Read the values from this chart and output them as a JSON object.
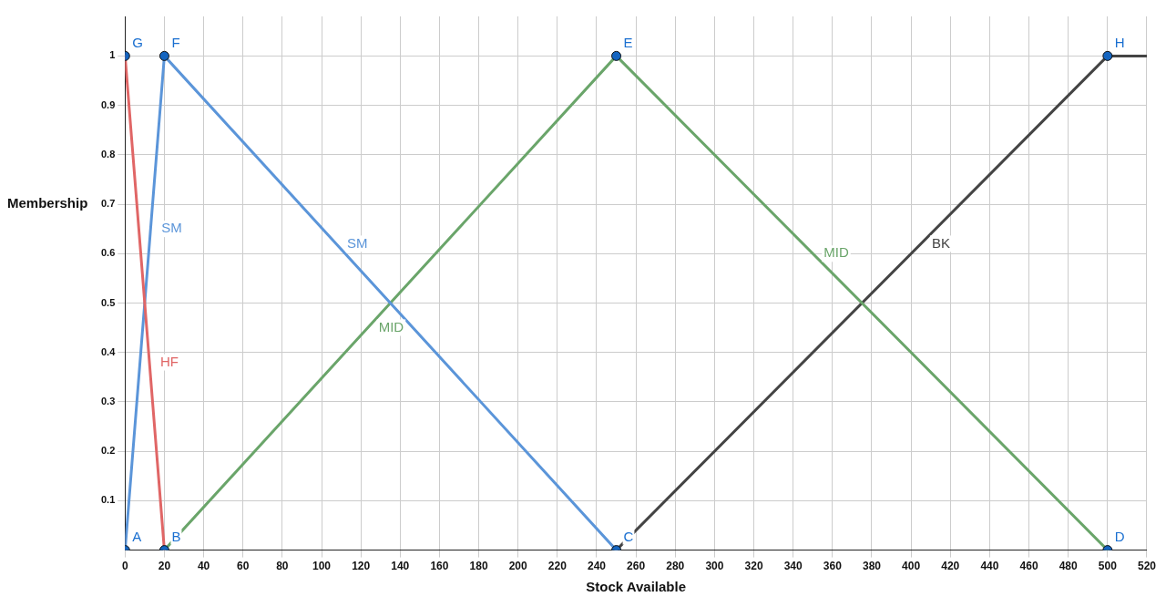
{
  "chart_data": {
    "type": "line",
    "xlabel": "Stock Available",
    "ylabel": "Membership",
    "xlim": [
      0,
      520
    ],
    "ylim": [
      0,
      1.08
    ],
    "xticks": [
      0,
      20,
      40,
      60,
      80,
      100,
      120,
      140,
      160,
      180,
      200,
      220,
      240,
      260,
      280,
      300,
      320,
      340,
      360,
      380,
      400,
      420,
      440,
      460,
      480,
      500,
      520
    ],
    "yticks": [
      0.1,
      0.2,
      0.3,
      0.4,
      0.5,
      0.6,
      0.7,
      0.8,
      0.9,
      1
    ],
    "grid": true,
    "marker": "none",
    "line_style": "solid",
    "series": [
      {
        "name": "HF",
        "color": "#e06666",
        "x": [
          0,
          20
        ],
        "values": [
          1,
          0
        ]
      },
      {
        "name": "SM",
        "color": "#5b95d9",
        "x": [
          0,
          20,
          250
        ],
        "values": [
          0,
          1,
          0
        ]
      },
      {
        "name": "MID",
        "color": "#6aa56a",
        "x": [
          20,
          250,
          500
        ],
        "values": [
          0,
          1,
          0
        ]
      },
      {
        "name": "BK",
        "color": "#444444",
        "x": [
          250,
          500,
          520
        ],
        "values": [
          0,
          1,
          1
        ]
      },
      {
        "type": "scatter",
        "marker": "circle",
        "color": "#1565c0",
        "x": [
          0,
          20,
          250,
          500,
          250,
          20,
          0,
          500
        ],
        "values": [
          0,
          0,
          0,
          0,
          1,
          1,
          1,
          1
        ]
      }
    ],
    "annotations": [
      {
        "text": "A",
        "x": 0,
        "y": 0
      },
      {
        "text": "B",
        "x": 20,
        "y": 0
      },
      {
        "text": "C",
        "x": 250,
        "y": 0
      },
      {
        "text": "D",
        "x": 500,
        "y": 0
      },
      {
        "text": "E",
        "x": 250,
        "y": 1
      },
      {
        "text": "F",
        "x": 20,
        "y": 1
      },
      {
        "text": "G",
        "x": 0,
        "y": 1
      },
      {
        "text": "H",
        "x": 500,
        "y": 1
      }
    ]
  }
}
